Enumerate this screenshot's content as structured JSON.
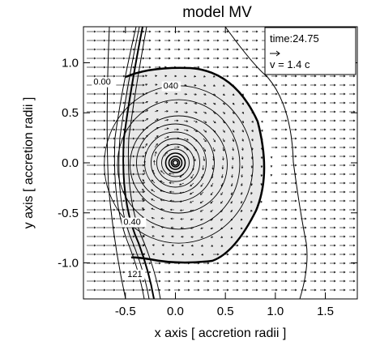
{
  "chart_data": {
    "type": "contour",
    "title": "model MV",
    "xlabel": "x axis [ accretion radii ]",
    "ylabel": "y axis [ accretion radii ]",
    "xlim": [
      -0.92,
      1.82
    ],
    "ylim": [
      -1.36,
      1.36
    ],
    "x_ticks": [
      -0.5,
      0.0,
      0.5,
      1.0,
      1.5
    ],
    "x_tick_labels": [
      "-0.5",
      "0.0",
      "0.5",
      "1.0",
      "1.5"
    ],
    "y_ticks": [
      -1.0,
      -0.5,
      0.0,
      0.5,
      1.0
    ],
    "y_tick_labels": [
      "-1.0",
      "-0.5",
      "0.0",
      "0.5",
      "1.0"
    ],
    "grid": false,
    "legend": {
      "position": "top-right",
      "time_label": "time:24.75",
      "velocity_label": "v =   1.4  c"
    },
    "contour_labels": [
      {
        "text": "0.00",
        "x": -0.82,
        "y": 0.78
      },
      {
        "text": "040",
        "x": -0.12,
        "y": 0.74
      },
      {
        "text": "0.40",
        "x": -0.52,
        "y": -0.62
      },
      {
        "text": "121",
        "x": -0.48,
        "y": -1.14
      }
    ],
    "colors": {
      "shaded_region": "#e8e8e8",
      "contours": "#000000",
      "vectors": "#000000"
    }
  }
}
